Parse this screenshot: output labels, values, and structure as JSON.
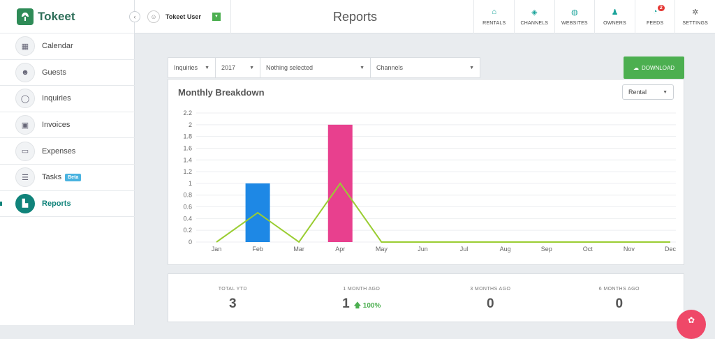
{
  "app": {
    "name": "Tokeet"
  },
  "sidebar": {
    "items": [
      {
        "label": "Calendar",
        "icon": "calendar-icon",
        "glyph": "▦"
      },
      {
        "label": "Guests",
        "icon": "guests-icon",
        "glyph": "☻"
      },
      {
        "label": "Inquiries",
        "icon": "chat-bubble-icon",
        "glyph": "◯"
      },
      {
        "label": "Invoices",
        "icon": "invoice-icon",
        "glyph": "▣"
      },
      {
        "label": "Expenses",
        "icon": "money-icon",
        "glyph": "▭"
      },
      {
        "label": "Tasks",
        "icon": "list-icon",
        "glyph": "☰",
        "badge": "Beta"
      },
      {
        "label": "Reports",
        "icon": "chart-icon",
        "glyph": "▙",
        "active": true
      }
    ]
  },
  "topbar": {
    "user_name": "Tokeet User",
    "page_title": "Reports",
    "nav": [
      {
        "label": "RENTALS",
        "icon": "home-icon",
        "glyph": "⌂"
      },
      {
        "label": "CHANNELS",
        "icon": "share-icon",
        "glyph": "◈"
      },
      {
        "label": "WEBSITES",
        "icon": "globe-icon",
        "glyph": "◍"
      },
      {
        "label": "OWNERS",
        "icon": "owner-icon",
        "glyph": "♟"
      },
      {
        "label": "FEEDS",
        "icon": "rss-icon",
        "glyph": "◔",
        "badge": "2"
      },
      {
        "label": "SETTINGS",
        "icon": "gear-icon",
        "glyph": "✲"
      }
    ]
  },
  "filters": {
    "type": "Inquiries",
    "year": "2017",
    "rentals": "Nothing selected",
    "channels": "Channels",
    "download_label": "DOWNLOAD"
  },
  "chart": {
    "title": "Monthly Breakdown",
    "rental_select": "Rental"
  },
  "chart_data": {
    "type": "bar",
    "categories": [
      "Jan",
      "Feb",
      "Mar",
      "Apr",
      "May",
      "Jun",
      "Jul",
      "Aug",
      "Sep",
      "Oct",
      "Nov",
      "Dec"
    ],
    "series": [
      {
        "type": "bar",
        "values": [
          0,
          1,
          0,
          2,
          0,
          0,
          0,
          0,
          0,
          0,
          0,
          0
        ],
        "colors": [
          "#1e88e5",
          "#1e88e5",
          "#1e88e5",
          "#e8408e",
          "#1e88e5",
          "#1e88e5",
          "#1e88e5",
          "#1e88e5",
          "#1e88e5",
          "#1e88e5",
          "#1e88e5",
          "#1e88e5"
        ]
      },
      {
        "type": "line",
        "values": [
          0,
          0.5,
          0,
          1,
          0,
          0,
          0,
          0,
          0,
          0,
          0,
          0
        ],
        "color": "#9acd32"
      }
    ],
    "yticks": [
      "0",
      "0.2",
      "0.4",
      "0.6",
      "0.8",
      "1",
      "1.2",
      "1.4",
      "1.6",
      "1.8",
      "2",
      "2.2"
    ],
    "ylim": [
      0,
      2.2
    ],
    "grid": true
  },
  "stats": [
    {
      "label": "TOTAL YTD",
      "value": "3",
      "change": ""
    },
    {
      "label": "1 MONTH AGO",
      "value": "1",
      "change": "100%"
    },
    {
      "label": "3 MONTHS AGO",
      "value": "0",
      "change": ""
    },
    {
      "label": "6 MONTHS AGO",
      "value": "0",
      "change": ""
    }
  ]
}
